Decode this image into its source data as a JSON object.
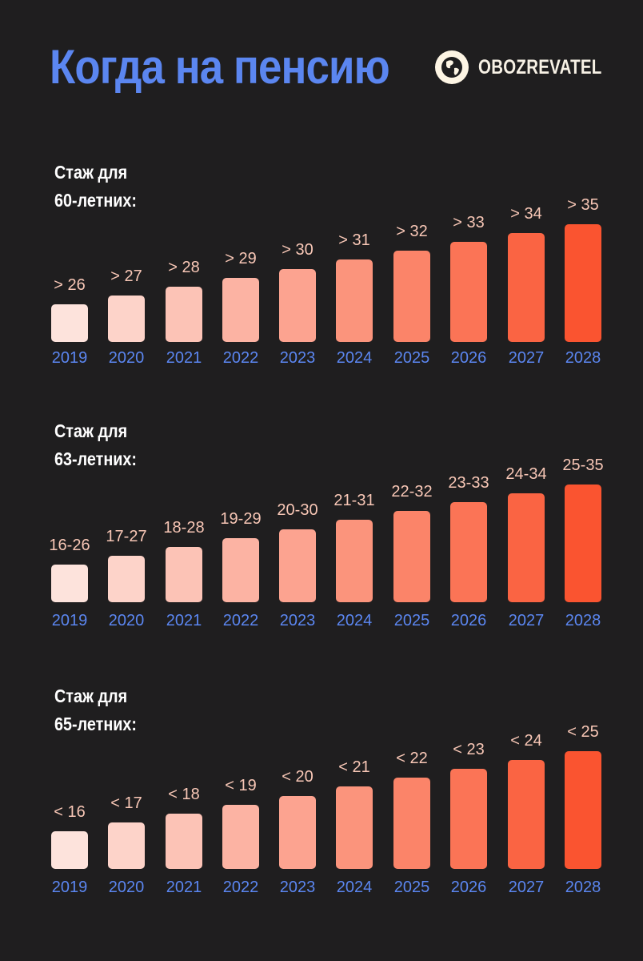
{
  "header": {
    "title": "Когда на пенсию",
    "brand": "OBOZREVATEL"
  },
  "colors": {
    "background": "#1f1e1f",
    "title": "#5b86f0",
    "year_label": "#5b86f0",
    "value_label": "#f8c7b6",
    "bar_gradient_start": "#fde3dc",
    "bar_gradient_end": "#fa5430"
  },
  "chart_data": [
    {
      "type": "bar",
      "title": "Стаж для 60-летних:",
      "categories": [
        "2019",
        "2020",
        "2021",
        "2022",
        "2023",
        "2024",
        "2025",
        "2026",
        "2027",
        "2028"
      ],
      "values": [
        26,
        27,
        28,
        29,
        30,
        31,
        32,
        33,
        34,
        35
      ],
      "labels": [
        "> 26",
        "> 27",
        "> 28",
        "> 29",
        "> 30",
        "> 31",
        "> 32",
        "> 33",
        "> 34",
        "> 35"
      ]
    },
    {
      "type": "bar",
      "title": "Стаж для 63-летних:",
      "categories": [
        "2019",
        "2020",
        "2021",
        "2022",
        "2023",
        "2024",
        "2025",
        "2026",
        "2027",
        "2028"
      ],
      "ranges": [
        [
          16,
          26
        ],
        [
          17,
          27
        ],
        [
          18,
          28
        ],
        [
          19,
          29
        ],
        [
          20,
          30
        ],
        [
          21,
          31
        ],
        [
          22,
          32
        ],
        [
          23,
          33
        ],
        [
          24,
          34
        ],
        [
          25,
          35
        ]
      ],
      "labels": [
        "16-26",
        "17-27",
        "18-28",
        "19-29",
        "20-30",
        "21-31",
        "22-32",
        "23-33",
        "24-34",
        "25-35"
      ]
    },
    {
      "type": "bar",
      "title": "Стаж для 65-летних:",
      "categories": [
        "2019",
        "2020",
        "2021",
        "2022",
        "2023",
        "2024",
        "2025",
        "2026",
        "2027",
        "2028"
      ],
      "values": [
        16,
        17,
        18,
        19,
        20,
        21,
        22,
        23,
        24,
        25
      ],
      "labels": [
        "< 16",
        "< 17",
        "< 18",
        "< 19",
        "< 20",
        "< 21",
        "< 22",
        "< 23",
        "< 24",
        "< 25"
      ]
    }
  ],
  "sections": [
    {
      "label_line1": "Стаж для",
      "label_line2": "60-летних:"
    },
    {
      "label_line1": "Стаж для",
      "label_line2": "63-летних:"
    },
    {
      "label_line1": "Стаж для",
      "label_line2": "65-летних:"
    }
  ]
}
